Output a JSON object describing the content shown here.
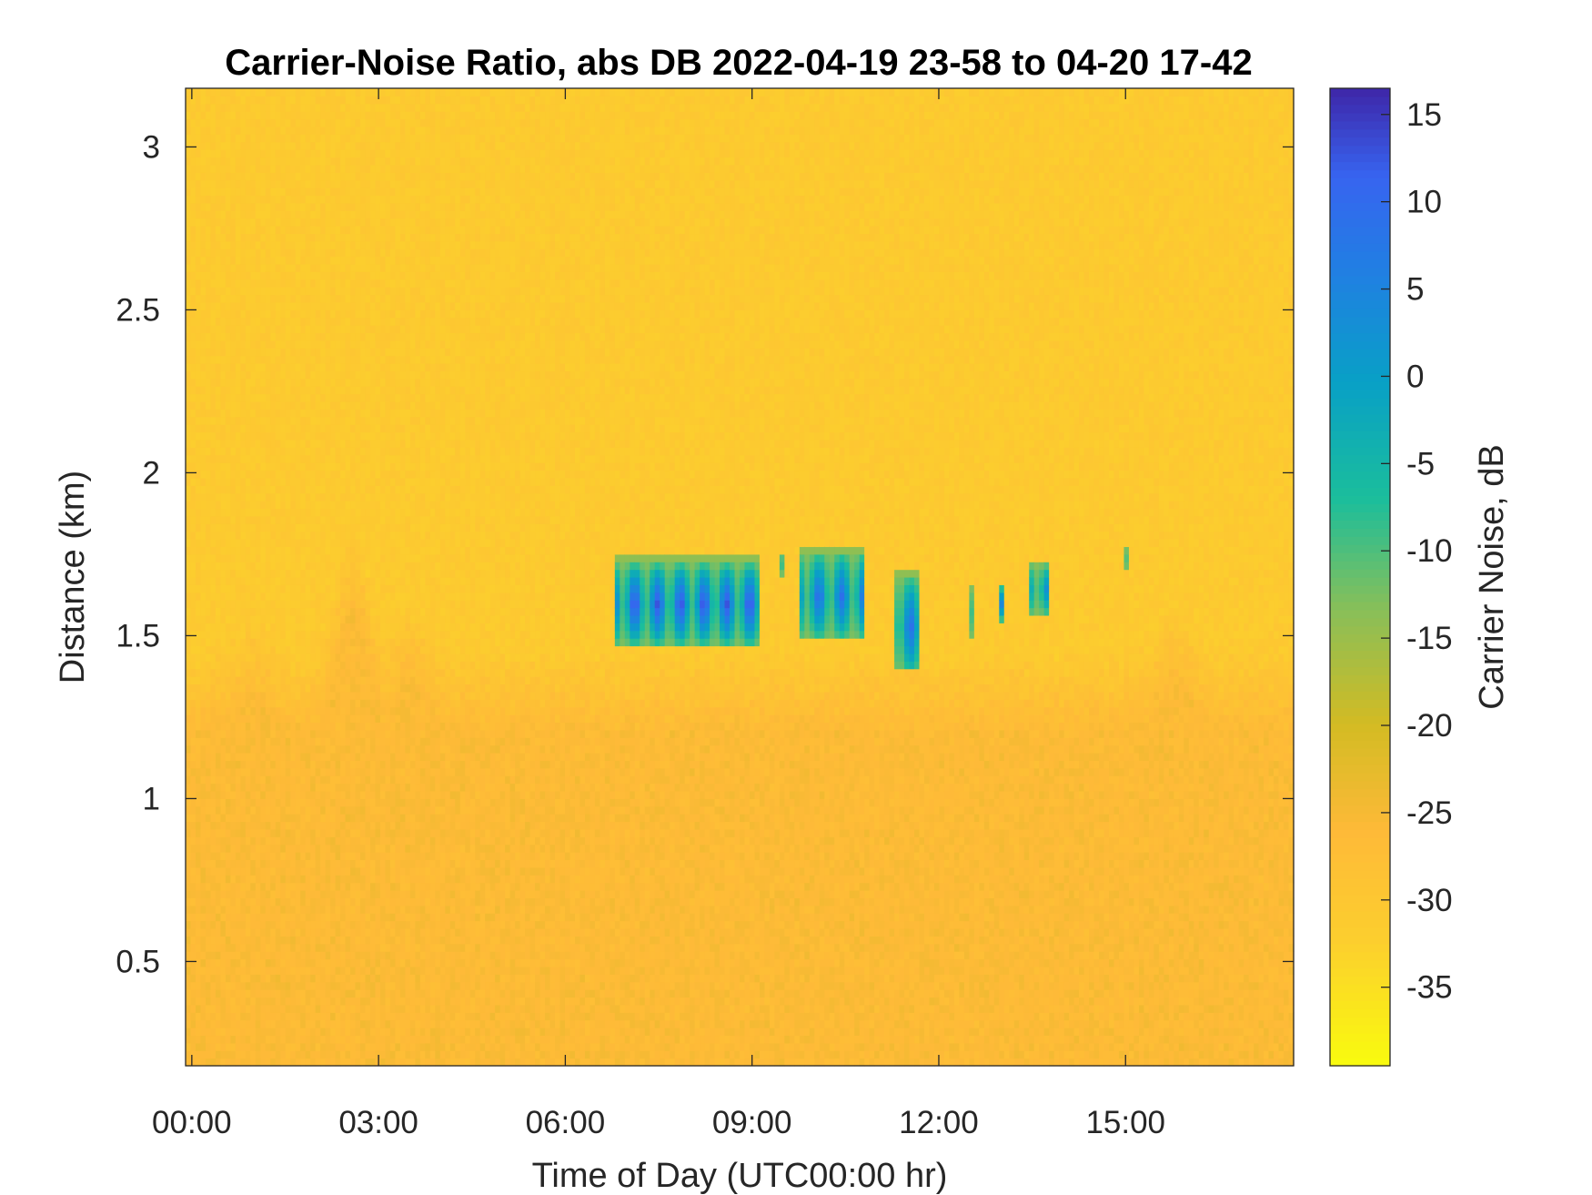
{
  "chart_data": {
    "type": "heatmap",
    "title": "Carrier-Noise Ratio, abs DB 2022-04-19 23-58 to 04-20 17-42",
    "xlabel": "Time of Day (UTC00:00 hr)",
    "ylabel": "Distance (km)",
    "x_unit": "hours",
    "xlim": [
      -0.1,
      17.7
    ],
    "ylim": [
      0.18,
      3.18
    ],
    "x_ticks": [
      0,
      3,
      6,
      9,
      12,
      15
    ],
    "x_tick_labels": [
      "00:00",
      "03:00",
      "06:00",
      "09:00",
      "12:00",
      "15:00"
    ],
    "y_ticks": [
      0.5,
      1,
      1.5,
      2,
      2.5,
      3
    ],
    "y_tick_labels": [
      "0.5",
      "1",
      "1.5",
      "2",
      "2.5",
      "3"
    ],
    "colorbar": {
      "label": "Carrier Noise, dB",
      "clim": [
        -39.5,
        16.5
      ],
      "ticks": [
        15,
        10,
        5,
        0,
        -5,
        -10,
        -15,
        -20,
        -25,
        -30,
        -35
      ],
      "tick_labels": [
        "15",
        "10",
        "5",
        "0",
        "-5",
        "-10",
        "-15",
        "-20",
        "-25",
        "-30",
        "-35"
      ],
      "colormap": "parula-reversed"
    },
    "background_level_db": -31,
    "boundary_layer": {
      "top_km": 1.45,
      "level_db": -26,
      "plumes": [
        {
          "time_hr": 1.0,
          "top_km": 1.55,
          "level_db": -22
        },
        {
          "time_hr": 2.6,
          "top_km": 1.82,
          "level_db": -20
        },
        {
          "time_hr": 3.5,
          "top_km": 1.6,
          "level_db": -22
        },
        {
          "time_hr": 4.6,
          "top_km": 1.4,
          "level_db": -21
        },
        {
          "time_hr": 12.8,
          "top_km": 1.45,
          "level_db": -19
        },
        {
          "time_hr": 13.8,
          "top_km": 1.35,
          "level_db": -20
        },
        {
          "time_hr": 15.8,
          "top_km": 1.6,
          "level_db": -20
        }
      ]
    },
    "cloud_layer": {
      "segments": [
        {
          "t_start": 6.8,
          "t_end": 9.1,
          "base_km": 1.48,
          "top_km": 1.74,
          "core_db": 13
        },
        {
          "t_start": 9.45,
          "t_end": 9.55,
          "base_km": 1.69,
          "top_km": 1.76,
          "core_db": 6
        },
        {
          "t_start": 9.8,
          "t_end": 10.8,
          "base_km": 1.5,
          "top_km": 1.77,
          "core_db": 9
        },
        {
          "t_start": 11.3,
          "t_end": 11.65,
          "base_km": 1.39,
          "top_km": 1.7,
          "core_db": 9
        },
        {
          "t_start": 12.45,
          "t_end": 12.55,
          "base_km": 1.5,
          "top_km": 1.66,
          "core_db": 0
        },
        {
          "t_start": 12.95,
          "t_end": 13.05,
          "base_km": 1.55,
          "top_km": 1.66,
          "core_db": 5
        },
        {
          "t_start": 13.45,
          "t_end": 13.75,
          "base_km": 1.57,
          "top_km": 1.73,
          "core_db": 4
        },
        {
          "t_start": 14.95,
          "t_end": 15.05,
          "base_km": 1.7,
          "top_km": 1.78,
          "core_db": -3
        }
      ]
    }
  }
}
